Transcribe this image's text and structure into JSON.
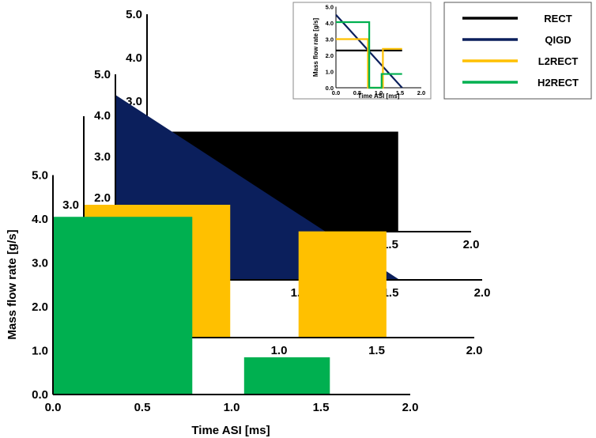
{
  "chart_data": {
    "type": "area",
    "description_free": true,
    "xlabel": "Time ASI [ms]",
    "ylabel": "Mass flow rate [g/s]",
    "xlim": [
      0,
      2.0
    ],
    "ylim": [
      0,
      5.0
    ],
    "x_ticks": [
      "0.0",
      "0.5",
      "1.0",
      "1.5",
      "2.0"
    ],
    "y_ticks": [
      "0.0",
      "1.0",
      "2.0",
      "3.0",
      "4.0",
      "5.0"
    ],
    "legend": {
      "placement": "top-right",
      "entries": [
        {
          "name": "RECT",
          "color": "#000000"
        },
        {
          "name": "QIGD",
          "color": "#0b1f5c"
        },
        {
          "name": "L2RECT",
          "color": "#ffc000"
        },
        {
          "name": "H2RECT",
          "color": "#00b050"
        }
      ]
    },
    "series": [
      {
        "name": "RECT",
        "color": "#000000",
        "points": [
          [
            0,
            2.3
          ],
          [
            1.55,
            2.3
          ]
        ]
      },
      {
        "name": "QIGD",
        "color": "#0b1f5c",
        "points": [
          [
            0,
            4.5
          ],
          [
            1.55,
            0
          ]
        ]
      },
      {
        "name": "L2RECT",
        "color": "#ffc000",
        "points": [
          [
            0,
            3.0
          ],
          [
            0.75,
            3.0
          ],
          [
            0.75,
            0
          ],
          [
            1.1,
            0
          ],
          [
            1.1,
            2.4
          ],
          [
            1.55,
            2.4
          ]
        ]
      },
      {
        "name": "H2RECT",
        "color": "#00b050",
        "points": [
          [
            0,
            4.05
          ],
          [
            0.78,
            4.05
          ],
          [
            0.78,
            0
          ],
          [
            1.07,
            0
          ],
          [
            1.07,
            0.85
          ],
          [
            1.55,
            0.85
          ]
        ]
      }
    ],
    "waterfall_layers": [
      "RECT",
      "QIGD",
      "L2RECT",
      "H2RECT"
    ],
    "inset": {
      "xlabel": "Time ASI [ms]",
      "ylabel": "Mass flow rate [g/s]",
      "x_ticks": [
        "0.0",
        "0.5",
        "1.0",
        "1.5",
        "2.0"
      ],
      "y_ticks": [
        "0.0",
        "1.0",
        "2.0",
        "3.0",
        "4.0",
        "5.0"
      ]
    }
  }
}
